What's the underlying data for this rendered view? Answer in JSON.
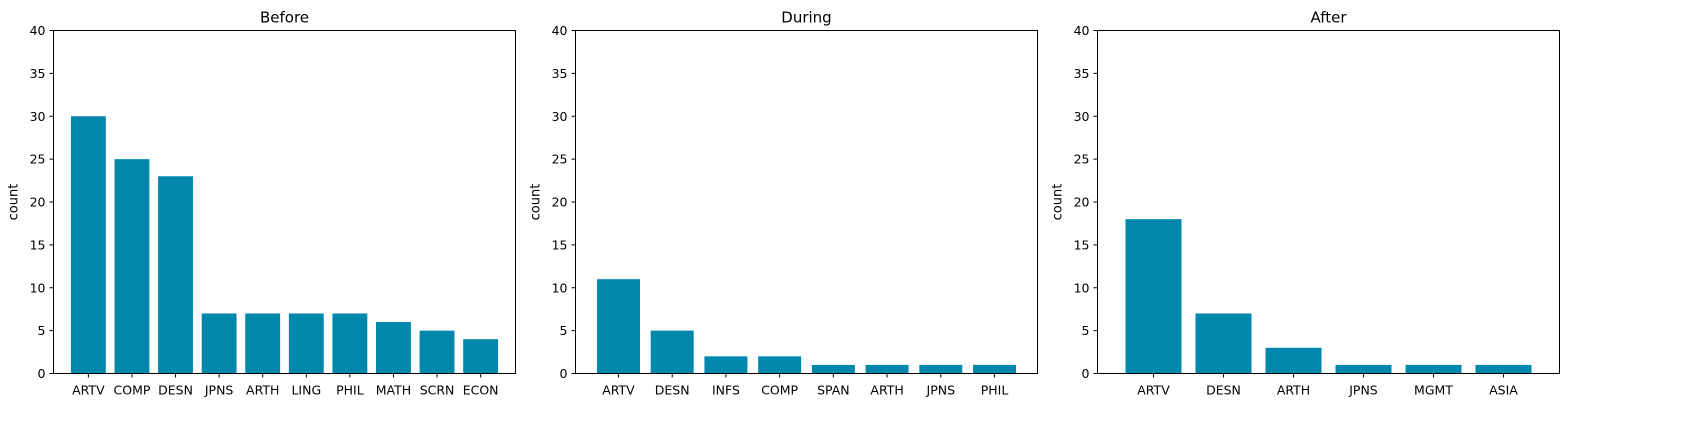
{
  "chart_data": [
    {
      "type": "bar",
      "title": "Before",
      "xlabel": "",
      "ylabel": "count",
      "ylim": [
        0,
        40
      ],
      "yticks": [
        0,
        5,
        10,
        15,
        20,
        25,
        30,
        35,
        40
      ],
      "categories": [
        "ARTV",
        "COMP",
        "DESN",
        "JPNS",
        "ARTH",
        "LING",
        "PHIL",
        "MATH",
        "SCRN",
        "ECON"
      ],
      "values": [
        30,
        25,
        23,
        7,
        7,
        7,
        7,
        6,
        5,
        4
      ],
      "color": "#0087ac",
      "grid": false
    },
    {
      "type": "bar",
      "title": "During",
      "xlabel": "",
      "ylabel": "count",
      "ylim": [
        0,
        40
      ],
      "yticks": [
        0,
        5,
        10,
        15,
        20,
        25,
        30,
        35,
        40
      ],
      "categories": [
        "ARTV",
        "DESN",
        "INFS",
        "COMP",
        "SPAN",
        "ARTH",
        "JPNS",
        "PHIL"
      ],
      "values": [
        11,
        5,
        2,
        2,
        1,
        1,
        1,
        1
      ],
      "color": "#0087ac",
      "grid": false
    },
    {
      "type": "bar",
      "title": "After",
      "xlabel": "",
      "ylabel": "count",
      "ylim": [
        0,
        40
      ],
      "yticks": [
        0,
        5,
        10,
        15,
        20,
        25,
        30,
        35,
        40
      ],
      "categories": [
        "ARTV",
        "DESN",
        "ARTH",
        "JPNS",
        "MGMT",
        "ASIA"
      ],
      "values": [
        18,
        7,
        3,
        1,
        1,
        1
      ],
      "color": "#0087ac",
      "grid": false
    }
  ]
}
